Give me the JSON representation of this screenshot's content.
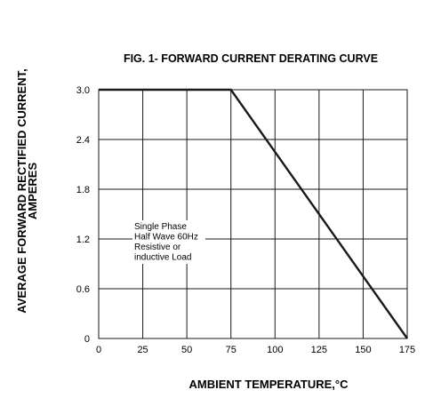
{
  "chart_data": {
    "type": "line",
    "title": "FIG. 1- FORWARD CURRENT DERATING CURVE",
    "xlabel": "AMBIENT TEMPERATURE,°C",
    "ylabel_line1": "AVERAGE FORWARD RECTIFIED CURRENT,",
    "ylabel_line2": "AMPERES",
    "xlim": [
      0,
      175
    ],
    "ylim": [
      0,
      3.0
    ],
    "xticks": [
      0,
      25,
      50,
      75,
      100,
      125,
      150,
      175
    ],
    "yticks": [
      0,
      0.6,
      1.2,
      1.8,
      2.4,
      3.0
    ],
    "xtick_labels": [
      "0",
      "25",
      "50",
      "75",
      "100",
      "125",
      "150",
      "175"
    ],
    "ytick_labels": [
      "0",
      "0.6",
      "1.2",
      "1.8",
      "2.4",
      "3.0"
    ],
    "grid": true,
    "series": [
      {
        "x": [
          0,
          75,
          175
        ],
        "y": [
          3.0,
          3.0,
          0
        ]
      }
    ],
    "annotation": {
      "lines": [
        "Single Phase",
        "Half Wave 60Hz",
        "Resistive or",
        "inductive Load"
      ]
    },
    "colors": {
      "line": "#1a1a1a",
      "grid": "#1a1a1a"
    }
  }
}
